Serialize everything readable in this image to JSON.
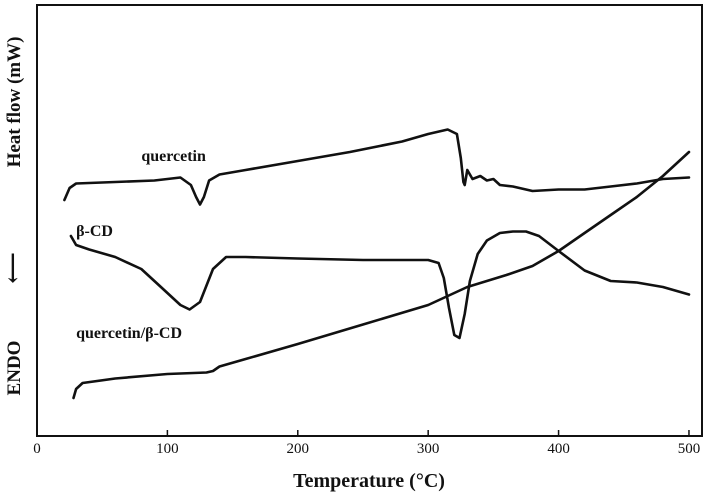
{
  "chart_data": {
    "type": "line",
    "xlabel": "Temperature (°C)",
    "ylabel_main": "Heat flow (mW)",
    "ylabel_endo": "ENDO",
    "ylabel_arrow": "⟵",
    "xlim": [
      0,
      510
    ],
    "x_ticks": [
      0,
      100,
      200,
      300,
      400,
      500
    ],
    "y_ticks_shown": false,
    "grid": false,
    "y_units": "relative heat flow (arbitrary, higher = more exothermic), curves vertically offset as in original",
    "ylim": [
      0,
      100
    ],
    "series": [
      {
        "name": "quercetin",
        "label_at": [
          80,
          83
        ],
        "points": [
          [
            21,
            70
          ],
          [
            25,
            74
          ],
          [
            30,
            75.5
          ],
          [
            60,
            76
          ],
          [
            90,
            76.5
          ],
          [
            110,
            77.5
          ],
          [
            118,
            75
          ],
          [
            122,
            71
          ],
          [
            125,
            68.5
          ],
          [
            128,
            71
          ],
          [
            132,
            76.5
          ],
          [
            140,
            78.5
          ],
          [
            160,
            80
          ],
          [
            200,
            83
          ],
          [
            240,
            86
          ],
          [
            280,
            89.5
          ],
          [
            300,
            92
          ],
          [
            315,
            93.5
          ],
          [
            322,
            92
          ],
          [
            325,
            84
          ],
          [
            327,
            76
          ],
          [
            328,
            75
          ],
          [
            330,
            80
          ],
          [
            334,
            77
          ],
          [
            340,
            78
          ],
          [
            345,
            76.5
          ],
          [
            350,
            77
          ],
          [
            355,
            75
          ],
          [
            365,
            74.5
          ],
          [
            380,
            73
          ],
          [
            400,
            73.5
          ],
          [
            420,
            73.5
          ],
          [
            440,
            74.5
          ],
          [
            460,
            75.5
          ],
          [
            480,
            77
          ],
          [
            500,
            77.5
          ]
        ]
      },
      {
        "name": "β-CD",
        "label_at": [
          30,
          58
        ],
        "points": [
          [
            26,
            58
          ],
          [
            30,
            55
          ],
          [
            40,
            53.5
          ],
          [
            60,
            51
          ],
          [
            80,
            47
          ],
          [
            95,
            41
          ],
          [
            110,
            35
          ],
          [
            117,
            33.5
          ],
          [
            125,
            36
          ],
          [
            135,
            47
          ],
          [
            145,
            51
          ],
          [
            160,
            51
          ],
          [
            200,
            50.5
          ],
          [
            250,
            50
          ],
          [
            300,
            50
          ],
          [
            308,
            49
          ],
          [
            312,
            44
          ],
          [
            316,
            34
          ],
          [
            320,
            25
          ],
          [
            324,
            24
          ],
          [
            328,
            32
          ],
          [
            332,
            43
          ],
          [
            338,
            52
          ],
          [
            345,
            56.5
          ],
          [
            355,
            59
          ],
          [
            365,
            59.5
          ],
          [
            375,
            59.5
          ],
          [
            385,
            58
          ],
          [
            400,
            53
          ],
          [
            420,
            46.5
          ],
          [
            440,
            43
          ],
          [
            460,
            42.5
          ],
          [
            480,
            41
          ],
          [
            500,
            38.5
          ]
        ]
      },
      {
        "name": "quercetin/β-CD",
        "label_at": [
          30,
          24
        ],
        "points": [
          [
            28,
            4
          ],
          [
            30,
            7
          ],
          [
            35,
            9
          ],
          [
            60,
            10.5
          ],
          [
            100,
            12
          ],
          [
            130,
            12.5
          ],
          [
            135,
            13
          ],
          [
            140,
            14.5
          ],
          [
            160,
            17
          ],
          [
            200,
            22
          ],
          [
            250,
            28.5
          ],
          [
            300,
            35
          ],
          [
            330,
            41
          ],
          [
            360,
            45
          ],
          [
            380,
            48
          ],
          [
            400,
            53
          ],
          [
            420,
            59
          ],
          [
            440,
            65
          ],
          [
            460,
            71
          ],
          [
            480,
            78
          ],
          [
            500,
            86
          ]
        ]
      }
    ]
  }
}
